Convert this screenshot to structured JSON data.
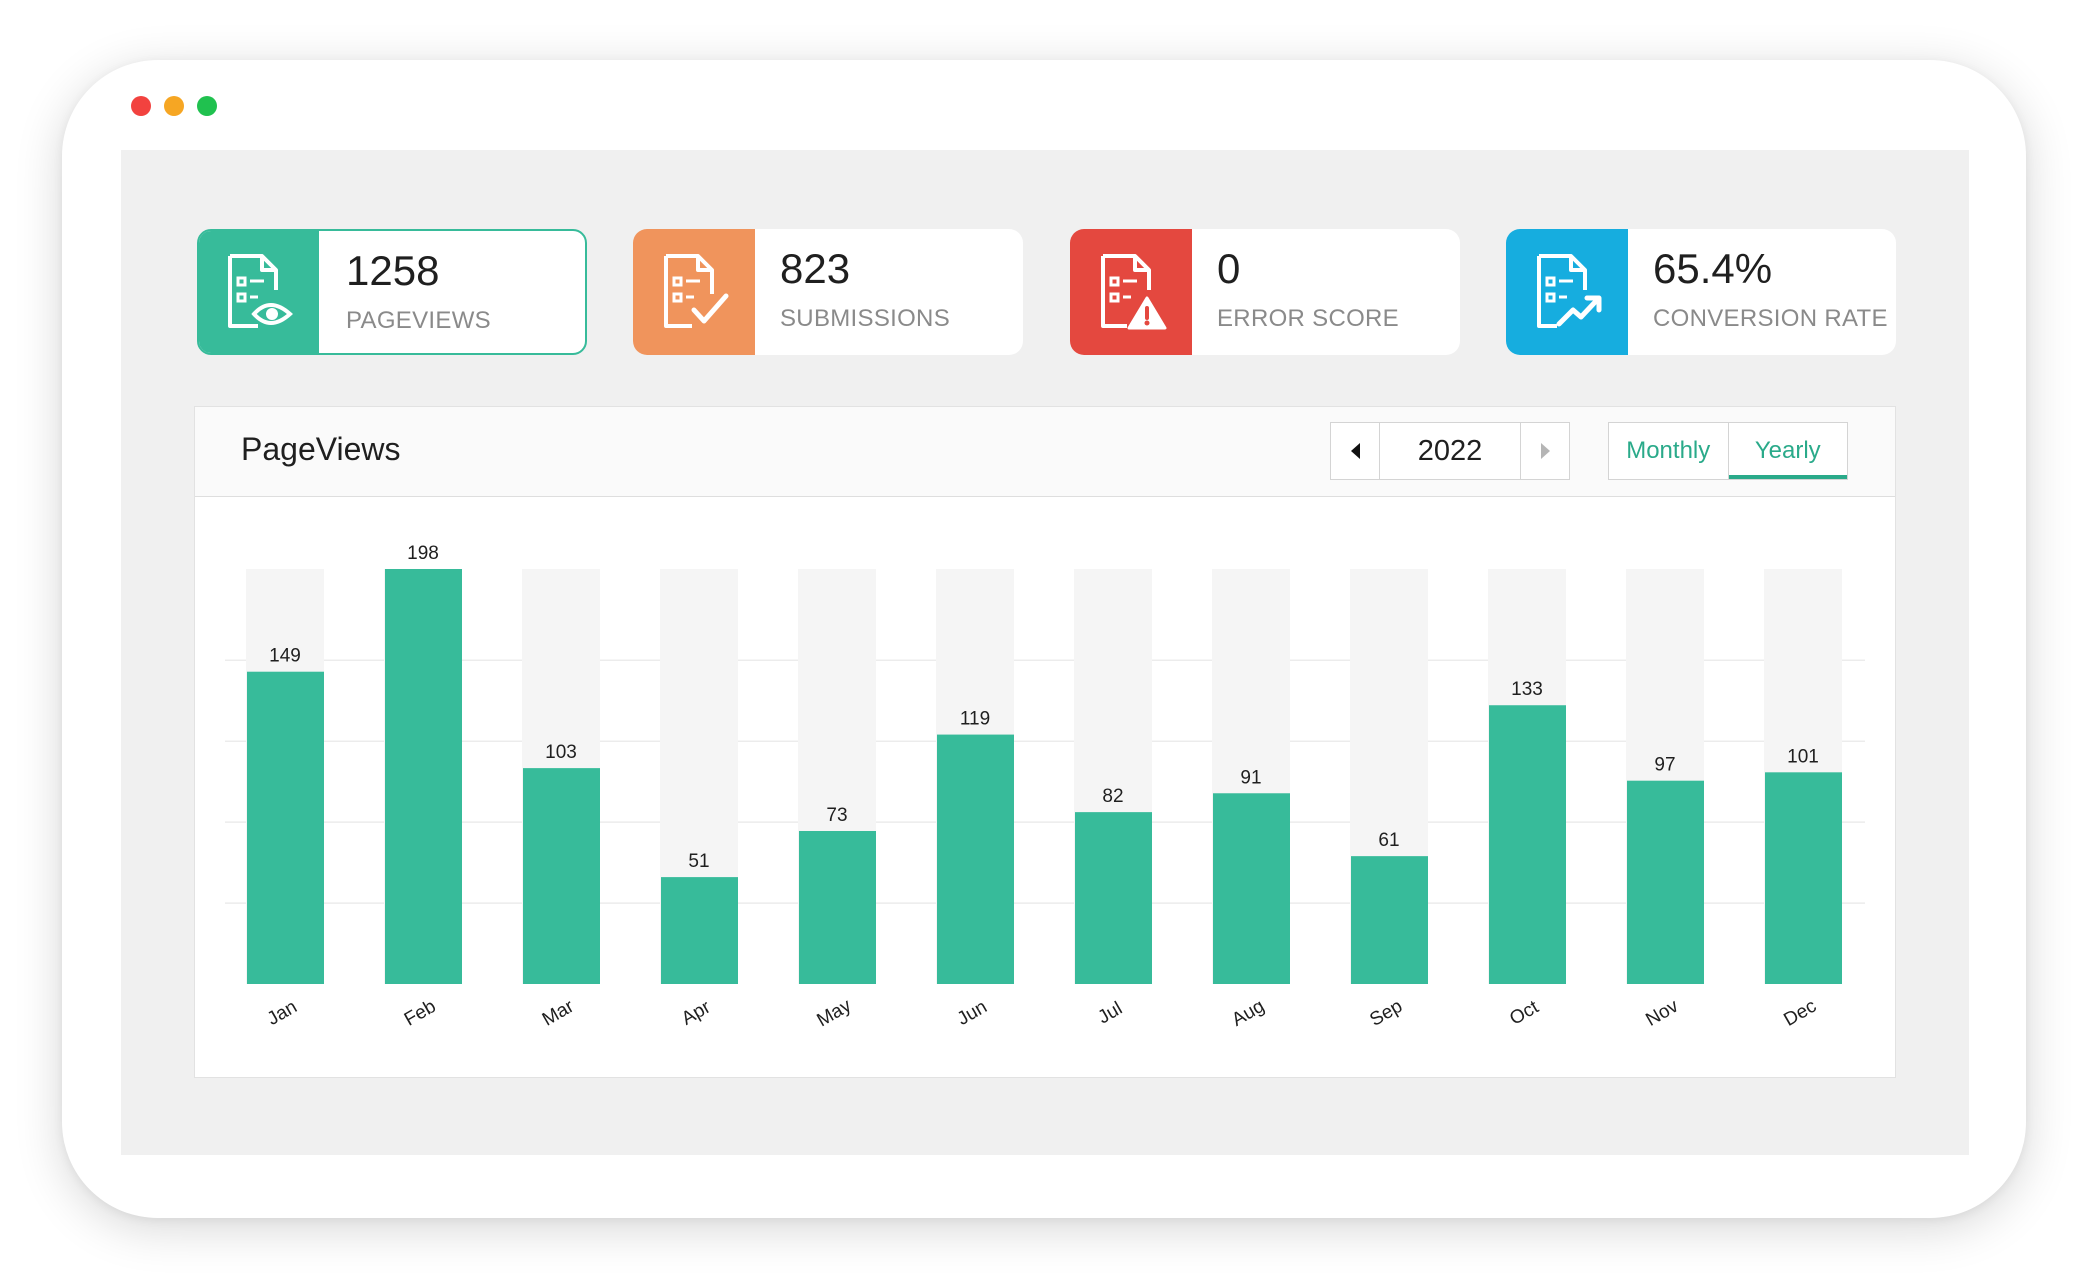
{
  "window": {
    "controls": [
      "close",
      "minimize",
      "maximize"
    ],
    "colors": {
      "close": "#f2423f",
      "minimize": "#f6a623",
      "maximize": "#20c14f"
    }
  },
  "stats": [
    {
      "value": "1258",
      "label": "PAGEVIEWS",
      "color": "#37bb9a",
      "icon": "document-eye-icon",
      "active": true
    },
    {
      "value": "823",
      "label": "SUBMISSIONS",
      "color": "#f0945c",
      "icon": "document-check-icon",
      "active": false
    },
    {
      "value": "0",
      "label": "ERROR SCORE",
      "color": "#e4483f",
      "icon": "document-warning-icon",
      "active": false
    },
    {
      "value": "65.4%",
      "label": "CONVERSION RATE",
      "color": "#16addf",
      "icon": "document-trend-icon",
      "active": false
    }
  ],
  "panel": {
    "title": "PageViews",
    "year": "2022",
    "toggle": {
      "monthly": "Monthly",
      "yearly": "Yearly",
      "selected": "Yearly"
    }
  },
  "chart_data": {
    "type": "bar",
    "title": "",
    "xlabel": "",
    "ylabel": "",
    "categories": [
      "Jan",
      "Feb",
      "Mar",
      "Apr",
      "May",
      "Jun",
      "Jul",
      "Aug",
      "Sep",
      "Oct",
      "Nov",
      "Dec"
    ],
    "values": [
      149,
      198,
      103,
      51,
      73,
      119,
      82,
      91,
      61,
      133,
      97,
      101
    ],
    "ylim": [
      0,
      198
    ],
    "bar_color": "#37bb9a",
    "track_color": "#f5f5f5",
    "grid": true,
    "data_labels": true,
    "legend": "none"
  }
}
